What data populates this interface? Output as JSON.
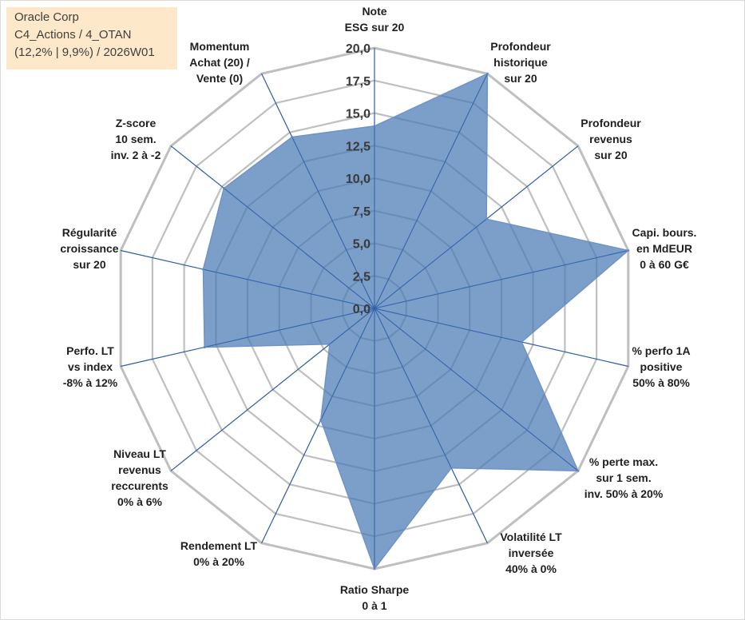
{
  "info": {
    "line1": "Oracle Corp",
    "line2": "C4_Actions / 4_OTAN",
    "line3": "(12,2% | 9,9%) / 2026W01"
  },
  "colors": {
    "fill": "#4a7ab5",
    "stroke": "#6f93c6",
    "grid": "#bfbfbf",
    "spoke": "#2f5ea9",
    "info_bg": "#fde9c9"
  },
  "chart_data": {
    "type": "radar",
    "title": "",
    "rmin": 0,
    "rmax": 20,
    "ticks": [
      "0,0",
      "2,5",
      "5,0",
      "7,5",
      "10,0",
      "12,5",
      "15,0",
      "17,5",
      "20,0"
    ],
    "axes": [
      [
        "Note",
        "ESG sur 20"
      ],
      [
        "Profondeur",
        "historique",
        "sur 20"
      ],
      [
        "Profondeur",
        "revenus",
        "sur 20"
      ],
      [
        "Capi. bours.",
        "en MdEUR",
        "0 à 60 G€"
      ],
      [
        "% perfo 1A",
        "positive",
        "50% à 80%"
      ],
      [
        "% perte max.",
        "sur 1 sem.",
        "inv. 50% à 20%"
      ],
      [
        "Volatilité LT",
        "inversée",
        "40% à 0%"
      ],
      [
        "Ratio Sharpe",
        "0 à 1"
      ],
      [
        "Rendement LT",
        "0% à 20%"
      ],
      [
        "Niveau LT",
        "revenus",
        "reccurents",
        "0% à 6%"
      ],
      [
        "Perfo. LT",
        "vs index",
        "-8% à 12%"
      ],
      [
        "Régularité",
        "croissance",
        "sur 20"
      ],
      [
        "Z-score",
        "10 sem.",
        "inv. 2 à -2"
      ],
      [
        "Momentum",
        "Achat (20) /",
        "Vente (0)"
      ]
    ],
    "values": [
      14,
      20,
      11,
      20,
      11.6,
      20,
      13.6,
      20,
      9.5,
      4.4,
      13.4,
      13.5,
      14.8,
      14.6
    ],
    "grid": true,
    "legend": "none"
  }
}
